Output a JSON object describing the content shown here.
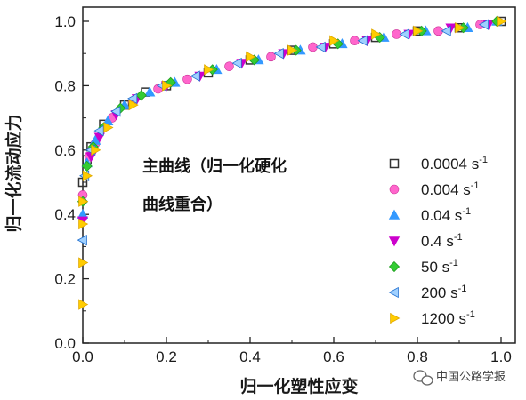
{
  "chart_data": {
    "type": "scatter",
    "title": "",
    "xlabel": "归一化塑性应变",
    "ylabel": "归一化流动应力",
    "xlim": [
      0,
      1
    ],
    "ylim": [
      0,
      1
    ],
    "xticks": [
      "0.0",
      "0.2",
      "0.4",
      "0.6",
      "0.8",
      "1.0"
    ],
    "yticks": [
      "0.0",
      "0.2",
      "0.4",
      "0.6",
      "0.8",
      "1.0"
    ],
    "annotation": [
      "主曲线（归一化硬化",
      "曲线重合）"
    ],
    "legend_position": "right",
    "series": [
      {
        "name": "0.0004 s",
        "superscript": "-1",
        "marker": "square",
        "color": "#808080",
        "x": [
          0.0,
          0.01,
          0.02,
          0.05,
          0.1,
          0.15,
          0.2,
          0.3,
          0.4,
          0.5,
          0.6,
          0.7,
          0.8,
          0.9,
          1.0
        ],
        "y": [
          0.5,
          0.57,
          0.61,
          0.68,
          0.74,
          0.78,
          0.8,
          0.84,
          0.88,
          0.91,
          0.93,
          0.95,
          0.97,
          0.98,
          1.0
        ]
      },
      {
        "name": "0.004 s",
        "superscript": "-1",
        "marker": "circle",
        "color": "#ff66cc",
        "x": [
          0.0,
          0.015,
          0.03,
          0.07,
          0.12,
          0.18,
          0.25,
          0.35,
          0.45,
          0.55,
          0.65,
          0.75,
          0.85,
          0.95
        ],
        "y": [
          0.46,
          0.58,
          0.62,
          0.7,
          0.75,
          0.79,
          0.82,
          0.86,
          0.89,
          0.92,
          0.94,
          0.96,
          0.97,
          0.99
        ]
      },
      {
        "name": "0.04 s",
        "superscript": "-1",
        "marker": "triangle-up",
        "color": "#3399ff",
        "x": [
          0.0,
          0.01,
          0.03,
          0.06,
          0.1,
          0.16,
          0.22,
          0.32,
          0.42,
          0.52,
          0.62,
          0.72,
          0.82,
          0.92,
          0.99
        ],
        "y": [
          0.4,
          0.56,
          0.63,
          0.69,
          0.74,
          0.78,
          0.81,
          0.85,
          0.88,
          0.91,
          0.93,
          0.95,
          0.97,
          0.98,
          1.0
        ]
      },
      {
        "name": "0.4 s",
        "superscript": "-1",
        "marker": "triangle-down",
        "color": "#cc00cc",
        "x": [
          0.0,
          0.02,
          0.04,
          0.08,
          0.13,
          0.2,
          0.28,
          0.38,
          0.48,
          0.58,
          0.68,
          0.78,
          0.88,
          0.97
        ],
        "y": [
          0.38,
          0.58,
          0.64,
          0.71,
          0.76,
          0.8,
          0.83,
          0.87,
          0.9,
          0.92,
          0.94,
          0.96,
          0.98,
          0.99
        ]
      },
      {
        "name": "50 s",
        "superscript": "-1",
        "marker": "diamond",
        "color": "#33cc33",
        "x": [
          0.0,
          0.01,
          0.025,
          0.05,
          0.09,
          0.14,
          0.21,
          0.31,
          0.41,
          0.51,
          0.61,
          0.71,
          0.81,
          0.91,
          0.99
        ],
        "y": [
          0.44,
          0.55,
          0.61,
          0.67,
          0.73,
          0.77,
          0.81,
          0.85,
          0.88,
          0.91,
          0.93,
          0.95,
          0.97,
          0.98,
          1.0
        ]
      },
      {
        "name": "200 s",
        "superscript": "-1",
        "marker": "triangle-left",
        "color": "#3399ff",
        "x": [
          0.0,
          0.005,
          0.02,
          0.04,
          0.08,
          0.12,
          0.19,
          0.27,
          0.37,
          0.47,
          0.57,
          0.67,
          0.77,
          0.87,
          0.96
        ],
        "y": [
          0.32,
          0.52,
          0.6,
          0.66,
          0.72,
          0.76,
          0.8,
          0.83,
          0.87,
          0.9,
          0.92,
          0.94,
          0.96,
          0.97,
          0.99
        ]
      },
      {
        "name": "1200 s",
        "superscript": "-1",
        "marker": "triangle-right",
        "color": "#ffcc00",
        "x": [
          0.0,
          0.0,
          0.0,
          0.0,
          0.01,
          0.03,
          0.06,
          0.12,
          0.2,
          0.3,
          0.4,
          0.5,
          0.6,
          0.7,
          0.8,
          0.9,
          1.0
        ],
        "y": [
          0.12,
          0.25,
          0.37,
          0.44,
          0.52,
          0.6,
          0.67,
          0.74,
          0.8,
          0.85,
          0.89,
          0.91,
          0.94,
          0.96,
          0.97,
          0.98,
          1.0
        ]
      }
    ]
  },
  "watermark": {
    "text": "中国公路学报",
    "icon": "wechat-icon"
  }
}
